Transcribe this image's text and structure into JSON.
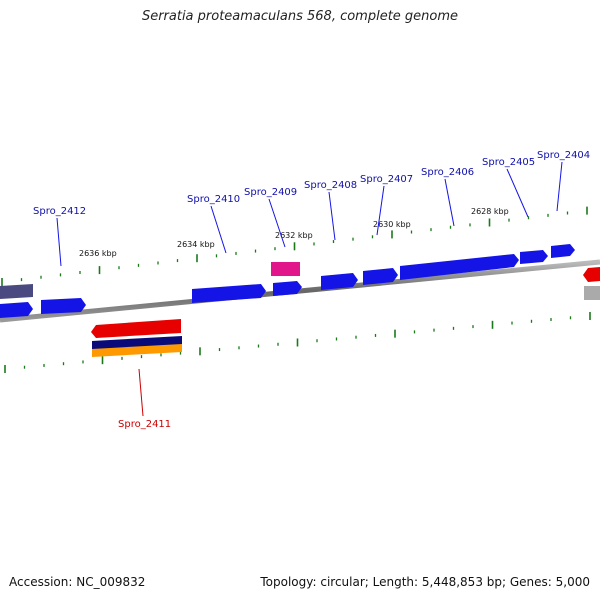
{
  "title": "Serratia proteamaculans 568, complete genome",
  "footer": {
    "accession": "Accession: NC_009832",
    "summary": "Topology: circular; Length: 5,448,853 bp; Genes: 5,000"
  },
  "colors": {
    "forward_gene": "#1414e6",
    "reverse_gene": "#e60000",
    "pink_gene": "#e0168a",
    "navy_gene": "#0a0a78",
    "orange_gene": "#ff9900",
    "grey_gene": "#aaaaaa",
    "tick": "#1a7a1a",
    "backbone": "#777777"
  },
  "kbp_labels": [
    "2636 kbp",
    "2634 kbp",
    "2632 kbp",
    "2630 kbp",
    "2628 kbp"
  ],
  "gene_labels": [
    {
      "text": "Spro_2412",
      "strand": "forward"
    },
    {
      "text": "Spro_2410",
      "strand": "forward"
    },
    {
      "text": "Spro_2409",
      "strand": "forward"
    },
    {
      "text": "Spro_2408",
      "strand": "forward"
    },
    {
      "text": "Spro_2407",
      "strand": "forward"
    },
    {
      "text": "Spro_2406",
      "strand": "forward"
    },
    {
      "text": "Spro_2405",
      "strand": "forward"
    },
    {
      "text": "Spro_2404",
      "strand": "forward"
    },
    {
      "text": "Spro_2411",
      "strand": "reverse"
    }
  ]
}
